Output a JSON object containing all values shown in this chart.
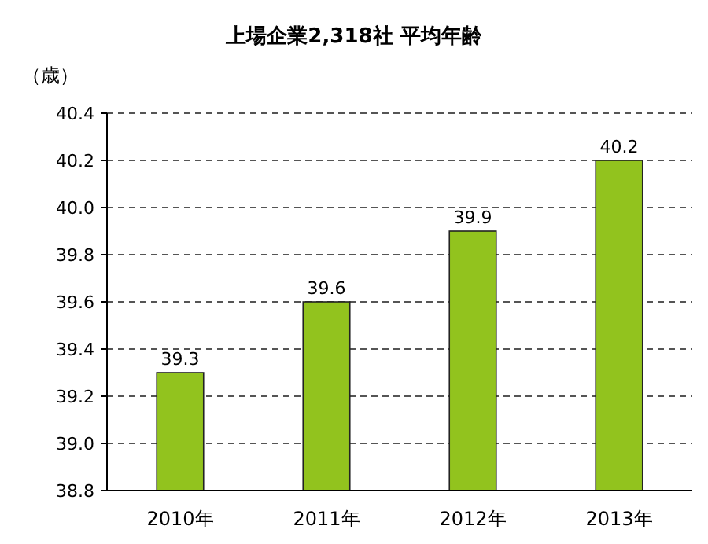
{
  "chart_data": {
    "type": "bar",
    "title": "上場企業2,318社 平均年齢",
    "ylabel": "（歳）",
    "categories": [
      "2010年",
      "2011年",
      "2012年",
      "2013年"
    ],
    "values": [
      39.3,
      39.6,
      39.9,
      40.2
    ],
    "color": "#92c31e",
    "ylim": [
      38.8,
      40.4
    ],
    "yticks": [
      38.8,
      {
        "value": 39,
        "label": "39.0"
      },
      39.2,
      39.4,
      39.6,
      39.8,
      {
        "value": 40,
        "label": "40.0"
      },
      40.2,
      40.4
    ],
    "grid": "y",
    "data_labels": true
  }
}
